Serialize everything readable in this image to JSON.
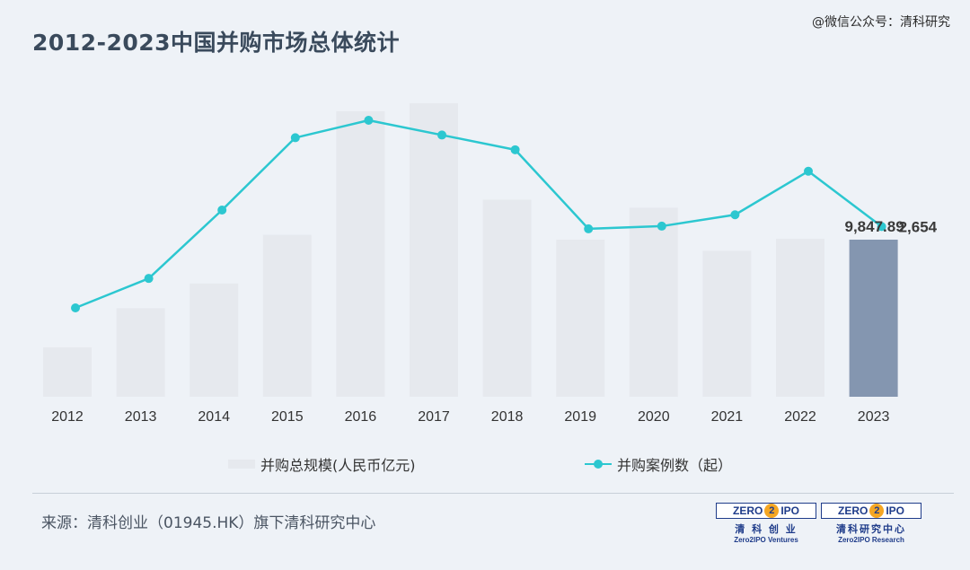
{
  "title": "2012-2023中国并购市场总体统计",
  "watermark": "@微信公众号：清科研究",
  "source": "来源：清科创业（01945.HK）旗下清科研究中心",
  "logos": [
    {
      "box": "ZERO2IPO",
      "cn": "清 科 创 业",
      "en": "Zero2IPO Ventures"
    },
    {
      "box": "ZERO2IPO",
      "cn": "清科研究中心",
      "en": "Zero2IPO Research"
    }
  ],
  "legend": {
    "bar": "并购总规模(人民币亿元)",
    "line": "并购案例数（起）"
  },
  "colors": {
    "bar": "#e6e9ee",
    "bar_highlight": "#8496b0",
    "line": "#2cc7d0",
    "background": "#eef2f7"
  },
  "chart_data": {
    "type": "bar+line",
    "categories": [
      "2012",
      "2013",
      "2014",
      "2015",
      "2016",
      "2017",
      "2018",
      "2019",
      "2020",
      "2021",
      "2022",
      "2023"
    ],
    "series": [
      {
        "name": "并购总规模(人民币亿元)",
        "type": "bar",
        "values": [
          3100,
          5550,
          7100,
          10150,
          17900,
          18400,
          12350,
          9850,
          11850,
          9150,
          9900,
          9847.89
        ],
        "highlight_index": 11,
        "value_labels": {
          "11": "9,847.89"
        }
      },
      {
        "name": "并购案例数（起）",
        "type": "line",
        "values": [
          1440,
          1880,
          2900,
          3980,
          4240,
          4020,
          3800,
          2620,
          2660,
          2830,
          3480,
          2654
        ],
        "value_labels": {
          "11": "2,654"
        }
      }
    ],
    "axes_visible": false,
    "grid": false,
    "legend_position": "bottom"
  }
}
